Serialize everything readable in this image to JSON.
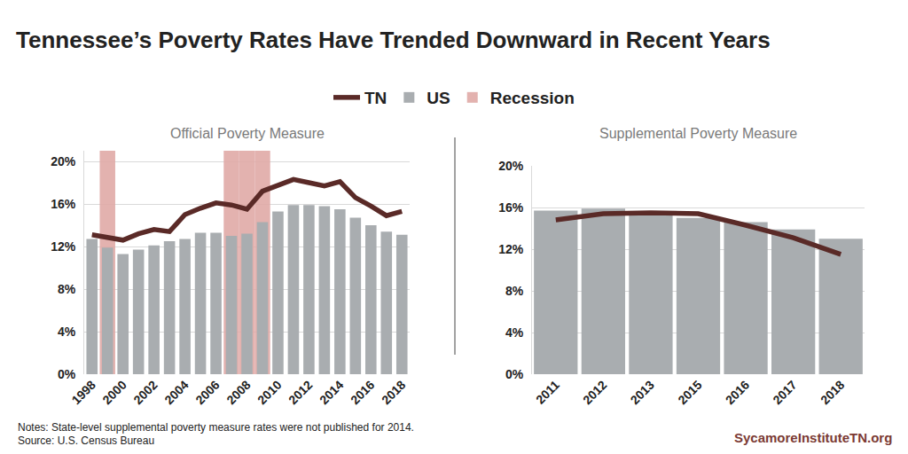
{
  "title": "Tennessee’s Poverty Rates Have Trended Downward in Recent Years",
  "notes": [
    "Notes: State-level supplemental poverty measure rates were not published for 2014.",
    "Source: U.S. Census Bureau"
  ],
  "credit": "SycamoreInstituteTN.org",
  "chart_data": [
    {
      "type": "bar",
      "title": "Official Poverty Measure",
      "legend": "top",
      "grid": true,
      "categories": [
        "1998",
        null,
        "2000",
        null,
        "2002",
        null,
        "2004",
        null,
        "2006",
        null,
        "2008",
        null,
        "2010",
        null,
        "2012",
        null,
        "2014",
        null,
        "2016",
        null,
        "2018"
      ],
      "series": [
        {
          "name": "TN",
          "type": "line",
          "color": "#5a2a27",
          "values": [
            13.1,
            12.8,
            12.6,
            13.2,
            13.6,
            13.4,
            15.0,
            15.6,
            16.1,
            15.9,
            15.5,
            17.2,
            17.7,
            18.3,
            18.0,
            17.7,
            18.1,
            16.6,
            15.8,
            14.9,
            15.3
          ]
        },
        {
          "name": "US",
          "type": "bar",
          "color": "#a9adb0",
          "values": [
            12.7,
            11.9,
            11.3,
            11.7,
            12.1,
            12.5,
            12.7,
            13.3,
            13.3,
            13.0,
            13.2,
            14.3,
            15.3,
            15.9,
            15.9,
            15.8,
            15.5,
            14.7,
            14.0,
            13.4,
            13.1
          ]
        },
        {
          "name": "Recession",
          "type": "bar",
          "color": "#e0aaa7",
          "values": [
            null,
            21,
            null,
            null,
            null,
            null,
            null,
            null,
            null,
            21,
            21,
            21,
            null,
            null,
            null,
            null,
            null,
            null,
            null,
            null,
            null
          ]
        }
      ],
      "ylim": [
        0,
        21
      ],
      "yticks": [
        {
          "value": 0,
          "label": "0%"
        },
        {
          "value": 4,
          "label": "4%"
        },
        {
          "value": 8,
          "label": "8%"
        },
        {
          "value": 12,
          "label": "12%"
        },
        {
          "value": 16,
          "label": "16%"
        },
        {
          "value": 20,
          "label": "20%"
        }
      ]
    },
    {
      "type": "bar",
      "title": "Supplemental Poverty Measure",
      "grid": true,
      "categories": [
        "2011",
        "2012",
        "2013",
        "2015",
        "2016",
        "2017",
        "2018"
      ],
      "series": [
        {
          "name": "TN",
          "type": "line",
          "color": "#5a2a27",
          "values": [
            14.8,
            15.4,
            15.5,
            15.4,
            14.3,
            13.1,
            11.5
          ]
        },
        {
          "name": "US",
          "type": "bar",
          "color": "#a9adb0",
          "values": [
            15.7,
            15.9,
            15.6,
            15.0,
            14.6,
            13.9,
            13.0
          ]
        }
      ],
      "ylim": [
        0,
        20
      ],
      "yticks": [
        {
          "value": 0,
          "label": "0%"
        },
        {
          "value": 4,
          "label": "4%"
        },
        {
          "value": 8,
          "label": "8%"
        },
        {
          "value": 12,
          "label": "12%"
        },
        {
          "value": 16,
          "label": "16%"
        },
        {
          "value": 20,
          "label": "20%"
        }
      ]
    }
  ]
}
